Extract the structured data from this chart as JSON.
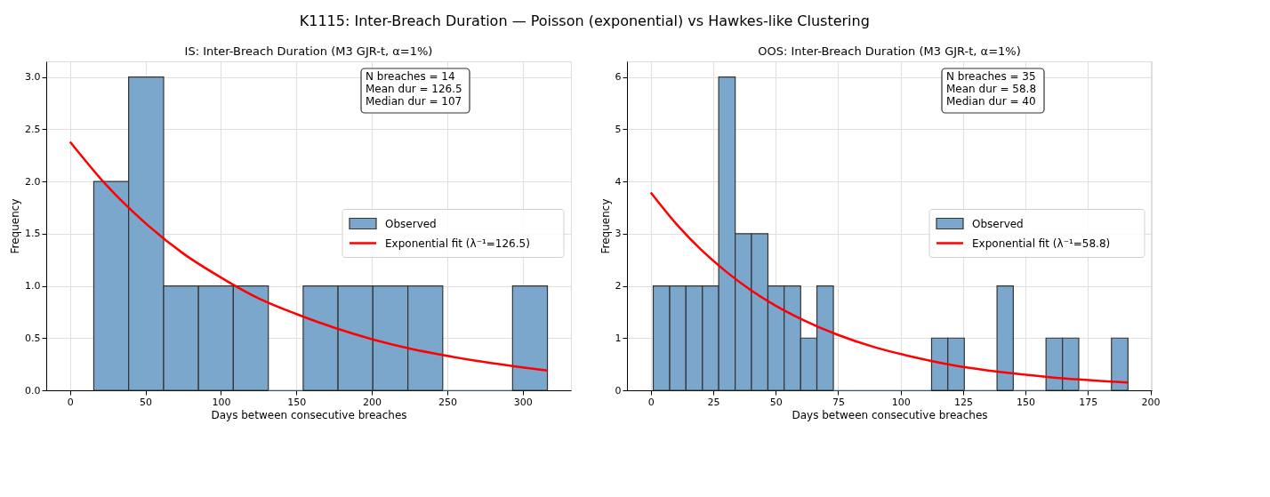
{
  "chart_data": [
    {
      "type": "histogram",
      "title": "K1115: Inter-Breach Duration — Poisson (exponential) vs Hawkes-like Clustering",
      "subtitle": "IS: Inter-Breach Duration (M3 GJR-t, α=1%)",
      "xlabel": "Days between consecutive breaches",
      "ylabel": "Frequency",
      "bins": [
        15.7,
        38.8,
        62.0,
        85.1,
        108.2,
        131.4,
        154.5,
        177.6,
        200.7,
        223.9,
        247.0,
        270.1,
        293.3,
        316.4
      ],
      "series": [
        {
          "name": "Observed",
          "type": "histogram",
          "color": "#7ba7cc",
          "values": [
            2,
            3,
            1,
            1,
            1,
            0,
            1,
            1,
            1,
            1,
            0,
            0,
            1
          ]
        },
        {
          "name": "Exponential fit (λ⁻¹=126.5)",
          "type": "line",
          "color": "#ff0000",
          "x": [
            0,
            25,
            50,
            75,
            100,
            125,
            150,
            175,
            200,
            225,
            250,
            275,
            300,
            316.4
          ],
          "values": [
            2.38,
            1.95,
            1.6,
            1.31,
            1.08,
            0.88,
            0.73,
            0.6,
            0.49,
            0.4,
            0.33,
            0.27,
            0.22,
            0.19
          ]
        }
      ],
      "xlim": [
        -15.8,
        332
      ],
      "xticks": [
        0,
        50,
        100,
        150,
        200,
        250,
        300
      ],
      "ylim": [
        0,
        3.15
      ],
      "yticks": [
        {
          "value": 0,
          "label": "0.0"
        },
        0.5,
        {
          "value": 1,
          "label": "1.0"
        },
        1.5,
        {
          "value": 2,
          "label": "2.0"
        },
        2.5,
        {
          "value": 3,
          "label": "3.0"
        }
      ],
      "annotations": [
        "N breaches = 14\nMean dur = 126.5\nMedian dur = 107"
      ],
      "grid": true,
      "legend": "right"
    },
    {
      "type": "histogram",
      "subtitle": "OOS: Inter-Breach Duration (M3 GJR-t, α=1%)",
      "xlabel": "Days between consecutive breaches",
      "ylabel": "Frequency",
      "bins": [
        1,
        7.6,
        14.1,
        20.7,
        27.2,
        33.8,
        40.3,
        46.9,
        53.4,
        60.0,
        66.5,
        73.1,
        79.6,
        86.2,
        92.7,
        99.3,
        105.8,
        112.4,
        118.9,
        125.5,
        132.0,
        138.6,
        145.1,
        151.7,
        158.2,
        164.8,
        171.3,
        177.9,
        184.4,
        191
      ],
      "series": [
        {
          "name": "Observed",
          "type": "histogram",
          "color": "#7ba7cc",
          "values": [
            2,
            2,
            2,
            2,
            6,
            3,
            3,
            2,
            2,
            1,
            2,
            0,
            0,
            0,
            0,
            0,
            0,
            1,
            1,
            0,
            0,
            2,
            0,
            0,
            1,
            1,
            0,
            0,
            1
          ]
        },
        {
          "name": "Exponential fit (λ⁻¹=58.8)",
          "type": "line",
          "color": "#ff0000",
          "x": [
            0,
            10,
            20,
            30,
            40,
            50,
            60,
            75,
            90,
            105,
            120,
            135,
            150,
            165,
            180,
            191
          ],
          "values": [
            3.79,
            3.2,
            2.7,
            2.28,
            1.92,
            1.62,
            1.37,
            1.06,
            0.82,
            0.64,
            0.49,
            0.38,
            0.3,
            0.23,
            0.18,
            0.15
          ]
        }
      ],
      "xlim": [
        -9.5,
        200.5
      ],
      "xticks": [
        0,
        25,
        50,
        75,
        100,
        125,
        150,
        175,
        200
      ],
      "ylim": [
        0,
        6.3
      ],
      "yticks": [
        0,
        1,
        2,
        3,
        4,
        5,
        6
      ],
      "annotations": [
        "N breaches = 35\nMean dur = 58.8\nMedian dur = 40"
      ],
      "grid": true,
      "legend": "right"
    }
  ]
}
